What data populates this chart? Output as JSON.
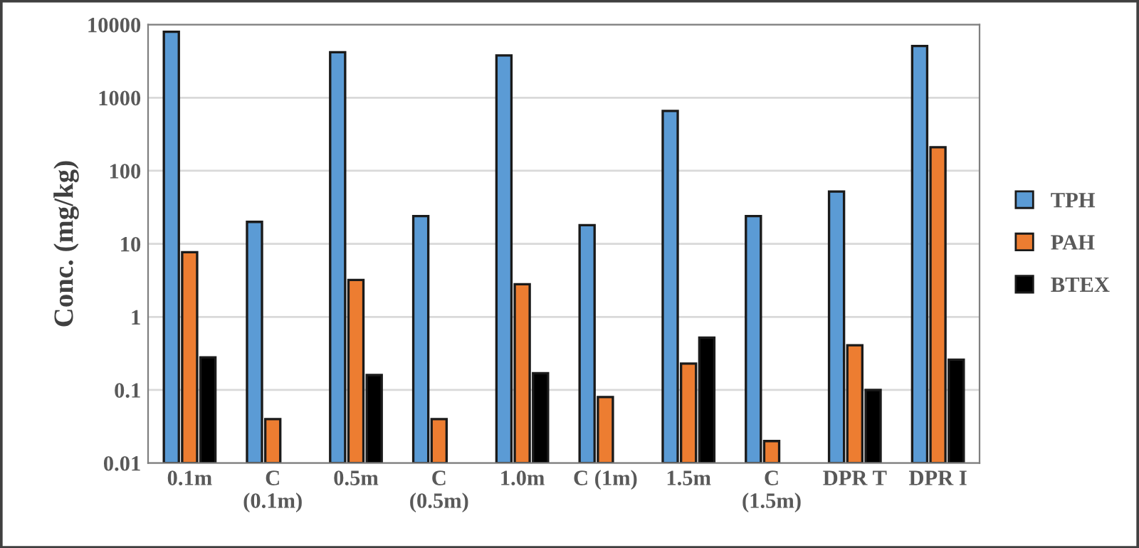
{
  "chart_data": {
    "type": "bar",
    "ylabel": "Conc. (mg/kg)",
    "categories": [
      "0.1m",
      "C\n(0.1m)",
      "0.5m",
      "C\n(0.5m)",
      "1.0m",
      "C (1m)",
      "1.5m",
      "C\n(1.5m)",
      "DPR T",
      "DPR I"
    ],
    "series": [
      {
        "name": "TPH",
        "color": "#5b9bd5",
        "values": [
          8000,
          20,
          4200,
          24,
          3800,
          18,
          660,
          24,
          52,
          5100
        ]
      },
      {
        "name": "PAH",
        "color": "#ed7d31",
        "values": [
          7.7,
          0.04,
          3.2,
          0.04,
          2.8,
          0.08,
          0.23,
          0.02,
          0.41,
          210
        ]
      },
      {
        "name": "BTEX",
        "color": "#000000",
        "values": [
          0.28,
          null,
          0.16,
          null,
          0.17,
          null,
          0.52,
          null,
          0.1,
          0.26
        ]
      }
    ],
    "log": true,
    "ylim": [
      0.01,
      10000
    ],
    "yticks": [
      {
        "value": 0.01,
        "label": "0.01"
      },
      {
        "value": 0.1,
        "label": "0.1"
      },
      1,
      10,
      100,
      1000,
      10000
    ],
    "grid": "y",
    "legend": "right"
  }
}
